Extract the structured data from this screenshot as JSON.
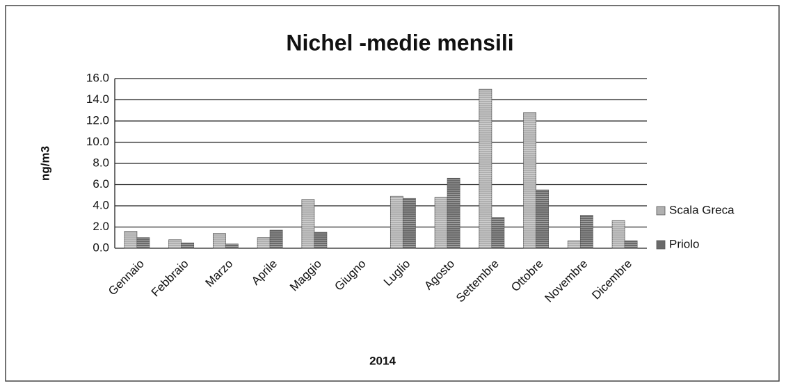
{
  "chart_data": {
    "type": "bar",
    "title": "Nichel -medie mensili",
    "x_label": "2014",
    "y_label": "ng/m3",
    "categories": [
      "Gennaio",
      "Febbraio",
      "Marzo",
      "Aprile",
      "Maggio",
      "Giugno",
      "Luglio",
      "Agosto",
      "Settembre",
      "Ottobre",
      "Novembre",
      "Dicembre"
    ],
    "series": [
      {
        "name": "Scala Greca",
        "color": "#b0b0b0",
        "values": [
          1.6,
          0.8,
          1.4,
          1.0,
          4.6,
          null,
          4.9,
          4.8,
          15.0,
          12.8,
          0.7,
          2.6
        ]
      },
      {
        "name": "Priolo",
        "color": "#6a6a6a",
        "values": [
          1.0,
          0.5,
          0.4,
          1.7,
          1.5,
          null,
          4.7,
          6.6,
          2.9,
          5.5,
          3.1,
          0.7
        ]
      }
    ],
    "ylim": [
      0,
      16
    ],
    "yticks": [
      {
        "value": 0,
        "label": "0.0"
      },
      {
        "value": 2,
        "label": "2.0"
      },
      {
        "value": 4,
        "label": "4.0"
      },
      {
        "value": 6,
        "label": "6.0"
      },
      {
        "value": 8,
        "label": "8.0"
      },
      {
        "value": 10,
        "label": "10.0"
      },
      {
        "value": 12,
        "label": "12.0"
      },
      {
        "value": 14,
        "label": "14.0"
      },
      {
        "value": 16,
        "label": "16.0"
      }
    ],
    "grid": true,
    "legend": "right"
  }
}
